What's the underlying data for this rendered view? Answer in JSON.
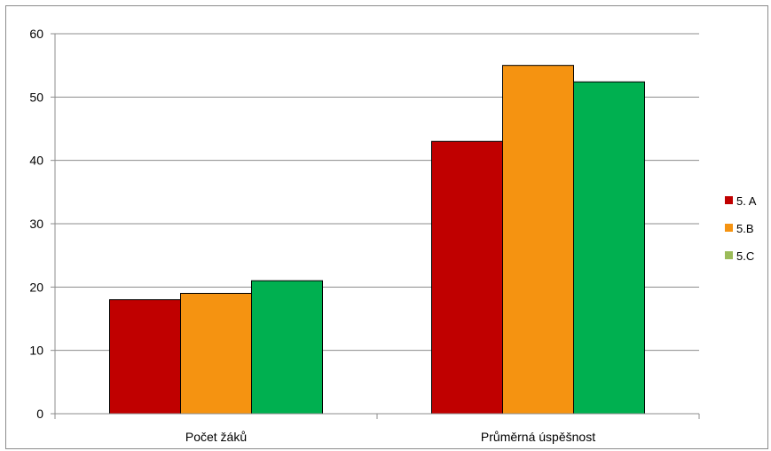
{
  "chart_data": {
    "type": "bar",
    "title": "",
    "xlabel": "",
    "ylabel": "",
    "categories": [
      "Počet žáků",
      "Průměrná úspěšnost"
    ],
    "series": [
      {
        "name": "5. A",
        "values": [
          18,
          43
        ],
        "color": "#c00000"
      },
      {
        "name": "5.B",
        "values": [
          19,
          55
        ],
        "color": "#f59311"
      },
      {
        "name": "5.C",
        "values": [
          21,
          52.4
        ],
        "color": "#00b050"
      }
    ],
    "legend_swatch_colors": [
      "#c00000",
      "#f59311",
      "#9bbb59"
    ],
    "ylim": [
      0,
      60
    ],
    "yticks": [
      0,
      10,
      20,
      30,
      40,
      50,
      60
    ],
    "grid": true,
    "legend_position": "right"
  }
}
